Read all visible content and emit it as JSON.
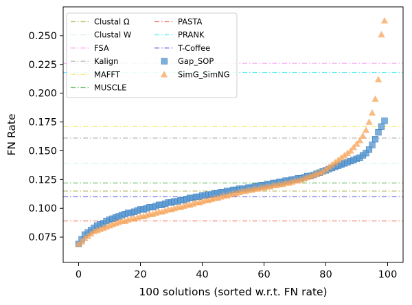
{
  "chart_data": {
    "type": "scatter",
    "xlabel": "100 solutions (sorted w.r.t. FN rate)",
    "ylabel": "FN Rate",
    "xlim": [
      -5,
      105
    ],
    "ylim": [
      0.053,
      0.275
    ],
    "xticks": [
      0,
      20,
      40,
      60,
      80,
      100
    ],
    "yticks": [
      0.075,
      0.1,
      0.125,
      0.15,
      0.175,
      0.2,
      0.225,
      0.25
    ],
    "ytick_labels": [
      "0.075",
      "0.100",
      "0.125",
      "0.150",
      "0.175",
      "0.200",
      "0.225",
      "0.250"
    ],
    "grid": false,
    "legend_placement": "top-left",
    "reference_lines": [
      {
        "name": "Clustal Ω",
        "value": 0.115,
        "color": "#bcbd6e"
      },
      {
        "name": "Clustal W",
        "value": 0.139,
        "color": "#d6eef2"
      },
      {
        "name": "FSA",
        "value": 0.226,
        "color": "#f7a8f0"
      },
      {
        "name": "Kalign",
        "value": 0.161,
        "color": "#b8b8b8"
      },
      {
        "name": "MAFFT",
        "value": 0.171,
        "color": "#f7e66e"
      },
      {
        "name": "MUSCLE",
        "value": 0.122,
        "color": "#6fbf6f"
      },
      {
        "name": "PASTA",
        "value": 0.089,
        "color": "#f07a72"
      },
      {
        "name": "PRANK",
        "value": 0.218,
        "color": "#5ef0f0"
      },
      {
        "name": "T-Coffee",
        "value": 0.11,
        "color": "#7070e8"
      }
    ],
    "series": [
      {
        "name": "Gap_SOP",
        "marker": "square",
        "color": "#5b9bd5",
        "x": [
          0,
          1,
          2,
          3,
          4,
          5,
          6,
          7,
          8,
          9,
          10,
          11,
          12,
          13,
          14,
          15,
          16,
          17,
          18,
          19,
          20,
          21,
          22,
          23,
          24,
          25,
          26,
          27,
          28,
          29,
          30,
          31,
          32,
          33,
          34,
          35,
          36,
          37,
          38,
          39,
          40,
          41,
          42,
          43,
          44,
          45,
          46,
          47,
          48,
          49,
          50,
          51,
          52,
          53,
          54,
          55,
          56,
          57,
          58,
          59,
          60,
          61,
          62,
          63,
          64,
          65,
          66,
          67,
          68,
          69,
          70,
          71,
          72,
          73,
          74,
          75,
          76,
          77,
          78,
          79,
          80,
          81,
          82,
          83,
          84,
          85,
          86,
          87,
          88,
          89,
          90,
          91,
          92,
          93,
          94,
          95,
          96,
          97,
          98,
          99
        ],
        "y": [
          0.069,
          0.073,
          0.077,
          0.079,
          0.081,
          0.083,
          0.085,
          0.086,
          0.087,
          0.089,
          0.09,
          0.091,
          0.092,
          0.093,
          0.094,
          0.095,
          0.096,
          0.096,
          0.097,
          0.098,
          0.099,
          0.099,
          0.1,
          0.101,
          0.101,
          0.102,
          0.103,
          0.103,
          0.104,
          0.105,
          0.105,
          0.106,
          0.106,
          0.107,
          0.107,
          0.108,
          0.109,
          0.109,
          0.11,
          0.11,
          0.111,
          0.111,
          0.112,
          0.112,
          0.113,
          0.113,
          0.114,
          0.114,
          0.115,
          0.115,
          0.116,
          0.116,
          0.117,
          0.117,
          0.117,
          0.118,
          0.118,
          0.119,
          0.119,
          0.12,
          0.12,
          0.121,
          0.121,
          0.122,
          0.122,
          0.123,
          0.123,
          0.124,
          0.124,
          0.125,
          0.125,
          0.126,
          0.126,
          0.127,
          0.128,
          0.128,
          0.129,
          0.13,
          0.131,
          0.132,
          0.133,
          0.134,
          0.135,
          0.136,
          0.137,
          0.138,
          0.139,
          0.14,
          0.141,
          0.142,
          0.143,
          0.144,
          0.146,
          0.148,
          0.151,
          0.155,
          0.16,
          0.166,
          0.171,
          0.176
        ]
      },
      {
        "name": "SimG_SimNG",
        "marker": "triangle",
        "color": "#f7a45a",
        "x": [
          0,
          1,
          2,
          3,
          4,
          5,
          6,
          7,
          8,
          9,
          10,
          11,
          12,
          13,
          14,
          15,
          16,
          17,
          18,
          19,
          20,
          21,
          22,
          23,
          24,
          25,
          26,
          27,
          28,
          29,
          30,
          31,
          32,
          33,
          34,
          35,
          36,
          37,
          38,
          39,
          40,
          41,
          42,
          43,
          44,
          45,
          46,
          47,
          48,
          49,
          50,
          51,
          52,
          53,
          54,
          55,
          56,
          57,
          58,
          59,
          60,
          61,
          62,
          63,
          64,
          65,
          66,
          67,
          68,
          69,
          70,
          71,
          72,
          73,
          74,
          75,
          76,
          77,
          78,
          79,
          80,
          81,
          82,
          83,
          84,
          85,
          86,
          87,
          88,
          89,
          90,
          91,
          92,
          93,
          94,
          95,
          96,
          97,
          98,
          99
        ],
        "y": [
          0.069,
          0.071,
          0.074,
          0.076,
          0.078,
          0.08,
          0.081,
          0.082,
          0.083,
          0.084,
          0.085,
          0.086,
          0.087,
          0.088,
          0.089,
          0.089,
          0.09,
          0.091,
          0.091,
          0.092,
          0.093,
          0.093,
          0.094,
          0.095,
          0.095,
          0.096,
          0.097,
          0.097,
          0.098,
          0.099,
          0.099,
          0.1,
          0.101,
          0.101,
          0.102,
          0.103,
          0.103,
          0.104,
          0.105,
          0.105,
          0.106,
          0.107,
          0.107,
          0.108,
          0.109,
          0.109,
          0.11,
          0.111,
          0.111,
          0.112,
          0.113,
          0.113,
          0.114,
          0.115,
          0.115,
          0.116,
          0.116,
          0.117,
          0.117,
          0.118,
          0.118,
          0.119,
          0.119,
          0.12,
          0.12,
          0.121,
          0.121,
          0.122,
          0.122,
          0.123,
          0.124,
          0.124,
          0.125,
          0.126,
          0.127,
          0.128,
          0.129,
          0.13,
          0.131,
          0.132,
          0.134,
          0.136,
          0.138,
          0.14,
          0.142,
          0.144,
          0.146,
          0.148,
          0.15,
          0.153,
          0.156,
          0.159,
          0.163,
          0.168,
          0.175,
          0.183,
          0.195,
          0.212,
          0.251,
          0.263
        ]
      }
    ]
  }
}
